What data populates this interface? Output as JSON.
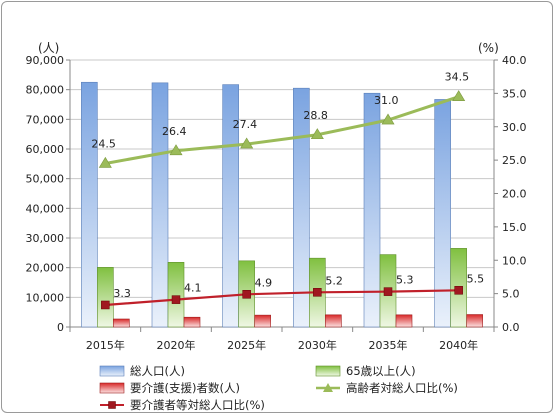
{
  "chart_data": {
    "type": "bar",
    "categories": [
      "2015年",
      "2020年",
      "2025年",
      "2030年",
      "2035年",
      "2040年"
    ],
    "left_axis": {
      "unit_label": "(人)",
      "ylim": [
        0,
        90000
      ],
      "step": 10000,
      "ticks": [
        "0",
        "10,000",
        "20,000",
        "30,000",
        "40,000",
        "50,000",
        "60,000",
        "70,000",
        "80,000",
        "90,000"
      ]
    },
    "right_axis": {
      "unit_label": "(%)",
      "ylim": [
        0,
        40
      ],
      "step": 5,
      "ticks": [
        "0.0",
        "5.0",
        "10.0",
        "15.0",
        "20.0",
        "25.0",
        "30.0",
        "35.0",
        "40.0"
      ]
    },
    "series": [
      {
        "name": "総人口(人)",
        "kind": "bar",
        "axis": "left",
        "color": "#6f98d8",
        "values": [
          82500,
          82300,
          81700,
          80500,
          78800,
          76700
        ]
      },
      {
        "name": "65歳以上(人)",
        "kind": "bar",
        "axis": "left",
        "color": "#8cc63f",
        "values": [
          20100,
          21800,
          22300,
          23200,
          24400,
          26500
        ]
      },
      {
        "name": "要介護(支援)者数(人)",
        "kind": "bar",
        "axis": "left",
        "color": "#e03c3c",
        "values": [
          2700,
          3300,
          4000,
          4100,
          4100,
          4200
        ]
      },
      {
        "name": "高齢者対総人口比(%)",
        "kind": "line",
        "axis": "right",
        "color": "#9bbb59",
        "values": [
          24.5,
          26.4,
          27.4,
          28.8,
          31.0,
          34.5
        ],
        "labels": [
          "24.5",
          "26.4",
          "27.4",
          "28.8",
          "31.0",
          "34.5"
        ]
      },
      {
        "name": "要介護者等対総人口比(%)",
        "kind": "line",
        "axis": "right",
        "color": "#c0202a",
        "values": [
          3.3,
          4.1,
          4.9,
          5.2,
          5.3,
          5.5
        ],
        "labels": [
          "3.3",
          "4.1",
          "4.9",
          "5.2",
          "5.3",
          "5.5"
        ]
      }
    ],
    "grid": true,
    "legend": "bottom"
  }
}
